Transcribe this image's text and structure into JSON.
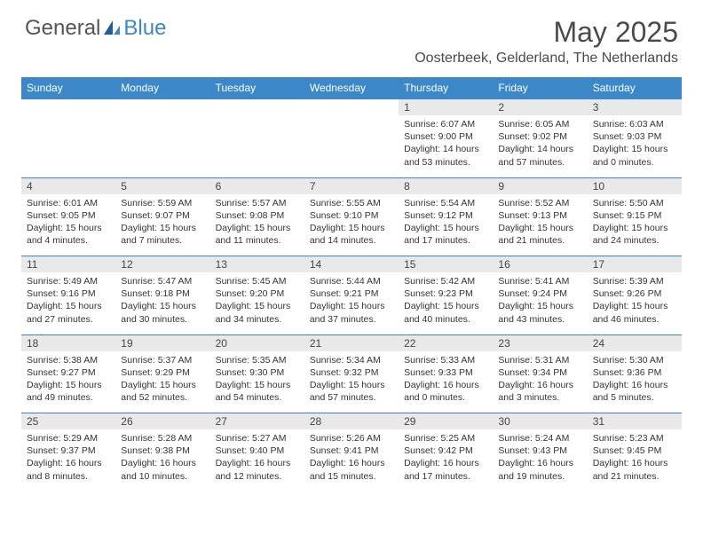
{
  "brand": {
    "part1": "General",
    "part2": "Blue"
  },
  "colors": {
    "header_bg": "#3b87c8",
    "daynum_bg": "#e9e9e9",
    "row_border": "#3b87c8",
    "text": "#333333",
    "title": "#4a4a4a"
  },
  "title": "May 2025",
  "location": "Oosterbeek, Gelderland, The Netherlands",
  "weekdays": [
    "Sunday",
    "Monday",
    "Tuesday",
    "Wednesday",
    "Thursday",
    "Friday",
    "Saturday"
  ],
  "weeks": [
    {
      "nums": [
        "",
        "",
        "",
        "",
        "1",
        "2",
        "3"
      ],
      "info": [
        "",
        "",
        "",
        "",
        "Sunrise: 6:07 AM\nSunset: 9:00 PM\nDaylight: 14 hours and 53 minutes.",
        "Sunrise: 6:05 AM\nSunset: 9:02 PM\nDaylight: 14 hours and 57 minutes.",
        "Sunrise: 6:03 AM\nSunset: 9:03 PM\nDaylight: 15 hours and 0 minutes."
      ]
    },
    {
      "nums": [
        "4",
        "5",
        "6",
        "7",
        "8",
        "9",
        "10"
      ],
      "info": [
        "Sunrise: 6:01 AM\nSunset: 9:05 PM\nDaylight: 15 hours and 4 minutes.",
        "Sunrise: 5:59 AM\nSunset: 9:07 PM\nDaylight: 15 hours and 7 minutes.",
        "Sunrise: 5:57 AM\nSunset: 9:08 PM\nDaylight: 15 hours and 11 minutes.",
        "Sunrise: 5:55 AM\nSunset: 9:10 PM\nDaylight: 15 hours and 14 minutes.",
        "Sunrise: 5:54 AM\nSunset: 9:12 PM\nDaylight: 15 hours and 17 minutes.",
        "Sunrise: 5:52 AM\nSunset: 9:13 PM\nDaylight: 15 hours and 21 minutes.",
        "Sunrise: 5:50 AM\nSunset: 9:15 PM\nDaylight: 15 hours and 24 minutes."
      ]
    },
    {
      "nums": [
        "11",
        "12",
        "13",
        "14",
        "15",
        "16",
        "17"
      ],
      "info": [
        "Sunrise: 5:49 AM\nSunset: 9:16 PM\nDaylight: 15 hours and 27 minutes.",
        "Sunrise: 5:47 AM\nSunset: 9:18 PM\nDaylight: 15 hours and 30 minutes.",
        "Sunrise: 5:45 AM\nSunset: 9:20 PM\nDaylight: 15 hours and 34 minutes.",
        "Sunrise: 5:44 AM\nSunset: 9:21 PM\nDaylight: 15 hours and 37 minutes.",
        "Sunrise: 5:42 AM\nSunset: 9:23 PM\nDaylight: 15 hours and 40 minutes.",
        "Sunrise: 5:41 AM\nSunset: 9:24 PM\nDaylight: 15 hours and 43 minutes.",
        "Sunrise: 5:39 AM\nSunset: 9:26 PM\nDaylight: 15 hours and 46 minutes."
      ]
    },
    {
      "nums": [
        "18",
        "19",
        "20",
        "21",
        "22",
        "23",
        "24"
      ],
      "info": [
        "Sunrise: 5:38 AM\nSunset: 9:27 PM\nDaylight: 15 hours and 49 minutes.",
        "Sunrise: 5:37 AM\nSunset: 9:29 PM\nDaylight: 15 hours and 52 minutes.",
        "Sunrise: 5:35 AM\nSunset: 9:30 PM\nDaylight: 15 hours and 54 minutes.",
        "Sunrise: 5:34 AM\nSunset: 9:32 PM\nDaylight: 15 hours and 57 minutes.",
        "Sunrise: 5:33 AM\nSunset: 9:33 PM\nDaylight: 16 hours and 0 minutes.",
        "Sunrise: 5:31 AM\nSunset: 9:34 PM\nDaylight: 16 hours and 3 minutes.",
        "Sunrise: 5:30 AM\nSunset: 9:36 PM\nDaylight: 16 hours and 5 minutes."
      ]
    },
    {
      "nums": [
        "25",
        "26",
        "27",
        "28",
        "29",
        "30",
        "31"
      ],
      "info": [
        "Sunrise: 5:29 AM\nSunset: 9:37 PM\nDaylight: 16 hours and 8 minutes.",
        "Sunrise: 5:28 AM\nSunset: 9:38 PM\nDaylight: 16 hours and 10 minutes.",
        "Sunrise: 5:27 AM\nSunset: 9:40 PM\nDaylight: 16 hours and 12 minutes.",
        "Sunrise: 5:26 AM\nSunset: 9:41 PM\nDaylight: 16 hours and 15 minutes.",
        "Sunrise: 5:25 AM\nSunset: 9:42 PM\nDaylight: 16 hours and 17 minutes.",
        "Sunrise: 5:24 AM\nSunset: 9:43 PM\nDaylight: 16 hours and 19 minutes.",
        "Sunrise: 5:23 AM\nSunset: 9:45 PM\nDaylight: 16 hours and 21 minutes."
      ]
    }
  ]
}
